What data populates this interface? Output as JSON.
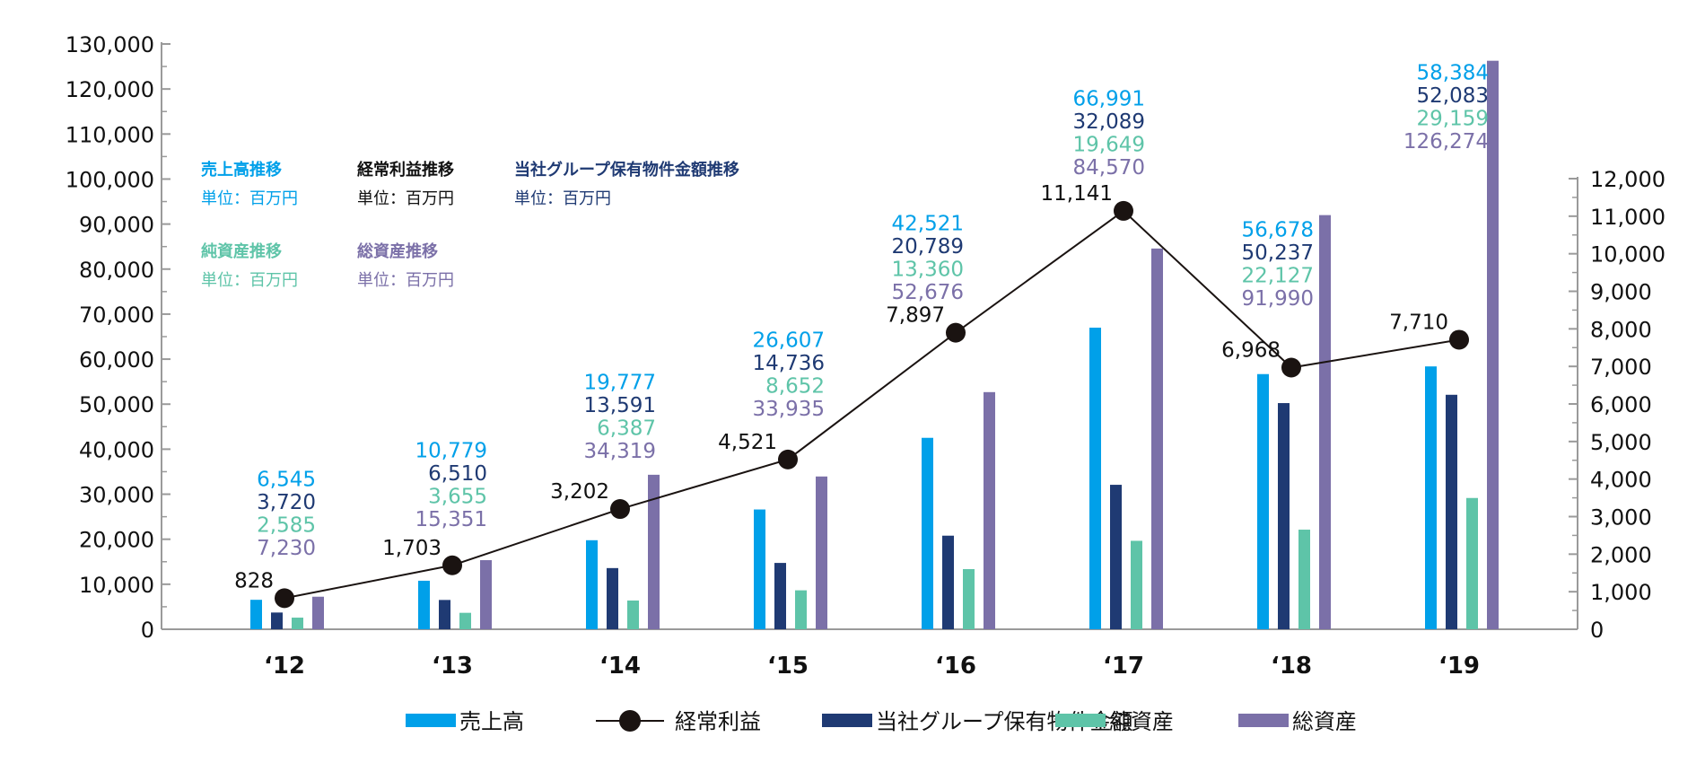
{
  "chart_data": {
    "type": "bar",
    "categories": [
      "‘12",
      "‘13",
      "‘14",
      "‘15",
      "‘16",
      "‘17",
      "‘18",
      "‘19"
    ],
    "left_axis": {
      "min": 0,
      "max": 130000,
      "step": 10000,
      "ticks": [
        "0",
        "10,000",
        "20,000",
        "30,000",
        "40,000",
        "50,000",
        "60,000",
        "70,000",
        "80,000",
        "90,000",
        "100,000",
        "110,000",
        "120,000",
        "130,000"
      ]
    },
    "right_axis": {
      "min": 0,
      "max": 12000,
      "step": 1000,
      "ticks": [
        "0",
        "1,000",
        "2,000",
        "3,000",
        "4,000",
        "5,000",
        "6,000",
        "7,000",
        "8,000",
        "9,000",
        "10,000",
        "11,000",
        "12,000"
      ]
    },
    "series": [
      {
        "name": "売上高",
        "key": "sales",
        "kind": "bar",
        "axis": "left",
        "color": "#00a0e9",
        "values": [
          6545,
          10779,
          19777,
          26607,
          42521,
          66991,
          56678,
          58384
        ],
        "labels": [
          "6,545",
          "10,779",
          "19,777",
          "26,607",
          "42,521",
          "66,991",
          "56,678",
          "58,384"
        ]
      },
      {
        "name": "当社グループ保有物件金額",
        "key": "property",
        "kind": "bar",
        "axis": "left",
        "color": "#1f3a73",
        "values": [
          3720,
          6510,
          13591,
          14736,
          20789,
          32089,
          50237,
          52083
        ],
        "labels": [
          "3,720",
          "6,510",
          "13,591",
          "14,736",
          "20,789",
          "32,089",
          "50,237",
          "52,083"
        ]
      },
      {
        "name": "純資産",
        "key": "net_assets",
        "kind": "bar",
        "axis": "left",
        "color": "#5ec4a8",
        "values": [
          2585,
          3655,
          6387,
          8652,
          13360,
          19649,
          22127,
          29159
        ],
        "labels": [
          "2,585",
          "3,655",
          "6,387",
          "8,652",
          "13,360",
          "19,649",
          "22,127",
          "29,159"
        ]
      },
      {
        "name": "総資産",
        "key": "total_assets",
        "kind": "bar",
        "axis": "left",
        "color": "#7b70a8",
        "values": [
          7230,
          15351,
          34319,
          33935,
          52676,
          84570,
          91990,
          126274
        ],
        "labels": [
          "7,230",
          "15,351",
          "34,319",
          "33,935",
          "52,676",
          "84,570",
          "91,990",
          "126,274"
        ]
      },
      {
        "name": "経常利益",
        "key": "ordinary_profit",
        "kind": "line",
        "axis": "right",
        "color": "#1a1311",
        "values": [
          828,
          1703,
          3202,
          4521,
          7897,
          11141,
          6968,
          7710
        ],
        "labels": [
          "828",
          "1,703",
          "3,202",
          "4,521",
          "7,897",
          "11,141",
          "6,968",
          "7,710"
        ]
      }
    ],
    "label_colors": {
      "sales": "#00a0e9",
      "property": "#1f3a73",
      "net_assets": "#5ec4a8",
      "total_assets": "#7b70a8"
    },
    "annotations": [
      {
        "title": "売上高推移",
        "unit": "単位：百万円",
        "color": "#00a0e9"
      },
      {
        "title": "経常利益推移",
        "unit": "単位：百万円",
        "color": "#111111"
      },
      {
        "title": "当社グループ保有物件金額推移",
        "unit": "単位：百万円",
        "color": "#1f3a73"
      },
      {
        "title": "純資産推移",
        "unit": "単位：百万円",
        "color": "#5ec4a8"
      },
      {
        "title": "総資産推移",
        "unit": "単位：百万円",
        "color": "#7b70a8"
      }
    ],
    "legend": {
      "position": "bottom",
      "items": [
        {
          "name": "売上高",
          "key": "sales"
        },
        {
          "name": "経常利益",
          "key": "ordinary_profit"
        },
        {
          "name": "当社グループ保有物件金額",
          "key": "property"
        },
        {
          "name": "純資産",
          "key": "net_assets"
        },
        {
          "name": "総資産",
          "key": "total_assets"
        }
      ]
    }
  }
}
